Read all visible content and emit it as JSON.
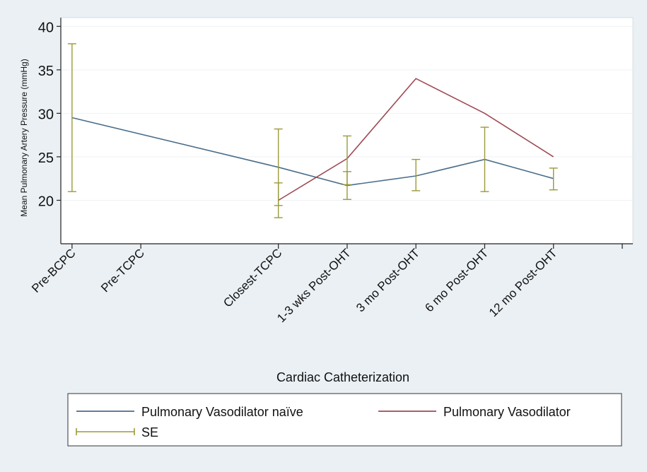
{
  "chart_data": {
    "type": "line",
    "ylabel": "Mean Pulmonary Artery Pressure (mmHg)",
    "xlabel": "Cardiac Catheterization",
    "ylim": [
      15,
      41
    ],
    "yticks": [
      20,
      25,
      30,
      35,
      40
    ],
    "categories": [
      "Pre-BCPC",
      "Pre-TCPC",
      "Closest-TCPC",
      "1-3 wks Post-OHT",
      "3 mo Post-OHT",
      "6 mo Post-OHT",
      "12 mo Post-OHT"
    ],
    "x": [
      1,
      2,
      4,
      5,
      6,
      7,
      8
    ],
    "xlim": [
      0.95,
      9.0
    ],
    "xtick_extra": [
      9
    ],
    "series": [
      {
        "name": "Pulmonary Vasodilator naïve",
        "color": "#4a6e8a",
        "points": [
          {
            "x": 1,
            "y": 29.5
          },
          {
            "x": 4,
            "y": 23.8
          },
          {
            "x": 5,
            "y": 21.7
          },
          {
            "x": 6,
            "y": 22.8
          },
          {
            "x": 7,
            "y": 24.7
          },
          {
            "x": 8,
            "y": 22.5
          }
        ]
      },
      {
        "name": "Pulmonary Vasodilator",
        "color": "#9e4a55",
        "points": [
          {
            "x": 4,
            "y": 20.0
          },
          {
            "x": 5,
            "y": 24.8
          },
          {
            "x": 6,
            "y": 34.0
          },
          {
            "x": 7,
            "y": 30.0
          },
          {
            "x": 8,
            "y": 25.0
          }
        ]
      }
    ],
    "error_bars": {
      "name": "SE",
      "color": "#9a9a3a",
      "bars": [
        {
          "x": 1,
          "low": 21.0,
          "high": 38.0
        },
        {
          "x": 4,
          "low": 19.4,
          "high": 28.2
        },
        {
          "x": 4,
          "low": 18.0,
          "high": 22.0
        },
        {
          "x": 5,
          "low": 20.1,
          "high": 27.4
        },
        {
          "x": 5,
          "low": 21.8,
          "high": 23.3
        },
        {
          "x": 6,
          "low": 21.1,
          "high": 24.7
        },
        {
          "x": 7,
          "low": 21.0,
          "high": 28.4
        },
        {
          "x": 8,
          "low": 21.2,
          "high": 23.7
        }
      ]
    },
    "legend": [
      {
        "label": "Pulmonary Vasodilator naïve",
        "kind": "line",
        "color": "#4a6e8a"
      },
      {
        "label": "Pulmonary Vasodilator",
        "kind": "line",
        "color": "#9e4a55"
      },
      {
        "label": "SE",
        "kind": "errorbar",
        "color": "#9a9a3a"
      }
    ],
    "legend_position": "bottom"
  }
}
